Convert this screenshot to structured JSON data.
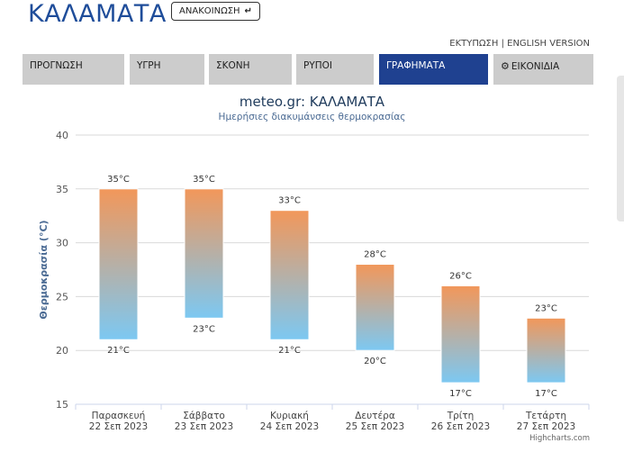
{
  "header": {
    "city": "ΚΑΛΑΜΑΤΑ",
    "announce_label": "ΑΝΑΚΟΙΝΩΣΗ",
    "announce_icon": "↵",
    "print_link": "ΕΚΤΥΠΩΣΗ",
    "separator": " | ",
    "english_link": "ENGLISH VERSION"
  },
  "tabs": [
    {
      "label": "ΠΡΟΓΝΩΣΗ",
      "active": false
    },
    {
      "label": "ΥΓΡΗ",
      "active": false
    },
    {
      "label": "ΣΚΟΝΗ",
      "active": false
    },
    {
      "label": "ΡΥΠΟΙ",
      "active": false
    },
    {
      "label": "ΓΡΑΦΗΜΑΤΑ",
      "active": true
    },
    {
      "label": "ΕΙΚΟΝΙΔΙΑ",
      "active": false,
      "icon": "gear-icon"
    }
  ],
  "chart_data": {
    "type": "bar",
    "title": "meteo.gr: ΚΑΛΑΜΑΤΑ",
    "subtitle": "Ημερήσιες διακυμάνσεις θερμοκρασίας",
    "ylabel": "Θερμοκρασία (°C)",
    "ylim": [
      15,
      40
    ],
    "yticks": [
      15,
      20,
      25,
      30,
      35,
      40
    ],
    "grid": true,
    "unit": "°C",
    "categories": [
      {
        "day": "Παρασκευή",
        "date": "22 Σεπ 2023"
      },
      {
        "day": "Σάββατο",
        "date": "23 Σεπ 2023"
      },
      {
        "day": "Κυριακή",
        "date": "24 Σεπ 2023"
      },
      {
        "day": "Δευτέρα",
        "date": "25 Σεπ 2023"
      },
      {
        "day": "Τρίτη",
        "date": "26 Σεπ 2023"
      },
      {
        "day": "Τετάρτη",
        "date": "27 Σεπ 2023"
      }
    ],
    "low": [
      21,
      23,
      21,
      20,
      17,
      17
    ],
    "high": [
      35,
      35,
      33,
      28,
      26,
      23
    ],
    "colors": {
      "high": "#f2975a",
      "low": "#7cc8f2",
      "grid": "#d9d9d9",
      "axis": "#ccd6eb",
      "label": "#333333"
    }
  },
  "credits": "Highcharts.com"
}
